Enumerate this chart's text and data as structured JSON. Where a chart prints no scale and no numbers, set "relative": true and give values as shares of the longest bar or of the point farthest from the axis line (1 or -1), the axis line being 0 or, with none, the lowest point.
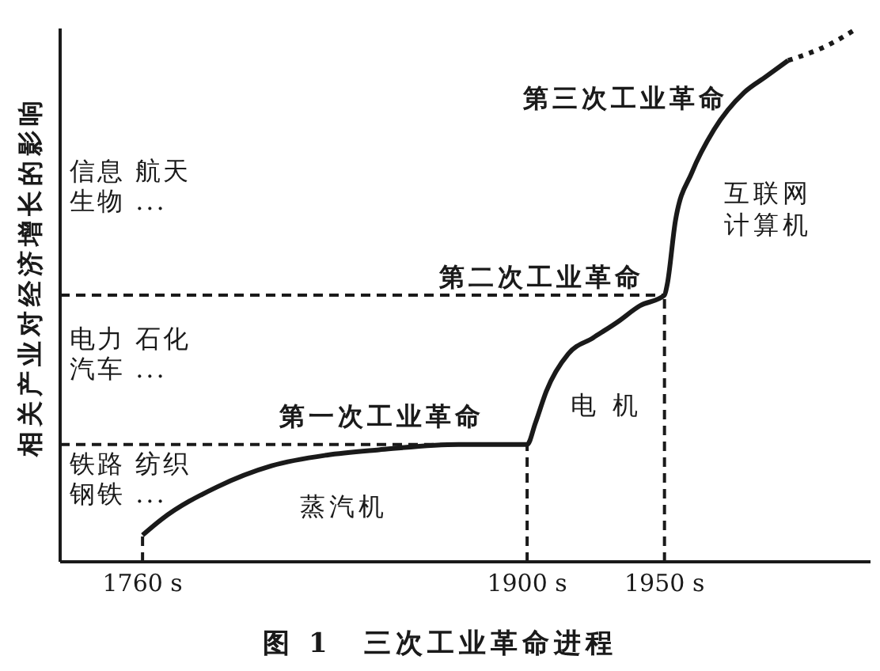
{
  "chart_data": {
    "type": "line",
    "title": "图 1　三次工业革命进程",
    "ylabel": "相关产业对经济增长的影响",
    "relative": true,
    "xlim": [
      1730,
      2025
    ],
    "xticks": [
      {
        "value": 1760,
        "label": "1760 s"
      },
      {
        "value": 1900,
        "label": "1900 s"
      },
      {
        "value": 1950,
        "label": "1950 s"
      }
    ],
    "tick_labels": "x",
    "marker": "none",
    "series": [
      {
        "color": "#1a1a1a",
        "line_style": "solid",
        "x": [
          1760,
          1767,
          1787,
          1807,
          1827,
          1846,
          1875,
          1900,
          1903,
          1907,
          1915,
          1924,
          1933,
          1941,
          1950,
          1951,
          1954,
          1960,
          1968,
          1979,
          1987,
          1995
        ],
        "values": [
          0.05,
          0.08,
          0.14,
          0.18,
          0.2,
          0.21,
          0.22,
          0.22,
          0.26,
          0.32,
          0.39,
          0.42,
          0.45,
          0.48,
          0.5,
          0.52,
          0.64,
          0.73,
          0.81,
          0.88,
          0.91,
          0.94
        ]
      },
      {
        "color": "#1a1a1a",
        "line_style": "dotted",
        "x": [
          1995,
          2010,
          2020
        ],
        "values": [
          0.94,
          0.97,
          1
        ]
      },
      {
        "color": "#1a1a1a",
        "line_style": "dashed",
        "x": [
          1760,
          1760
        ],
        "values": [
          0,
          0.05
        ]
      }
    ],
    "ref_lines": [
      {
        "axis": "x",
        "value": 1900,
        "line_style": "dashed",
        "color": "#1a1a1a"
      },
      {
        "axis": "x",
        "value": 1950,
        "line_style": "dashed",
        "color": "#1a1a1a"
      },
      {
        "axis": "y",
        "value": 0.22,
        "line_style": "dashed",
        "color": "#1a1a1a"
      },
      {
        "axis": "y",
        "value": 0.5,
        "line_style": "dashed",
        "color": "#1a1a1a"
      }
    ],
    "annotations": [
      "第三次工业革命",
      "第二次工业革命",
      "第一次工业革命",
      "互联网",
      "计算机",
      "电 机",
      "蒸汽机",
      "信息 航天",
      "生物 ...",
      "电力 石化",
      "汽车 ...",
      "铁路 纺织",
      "钢铁 ..."
    ]
  }
}
